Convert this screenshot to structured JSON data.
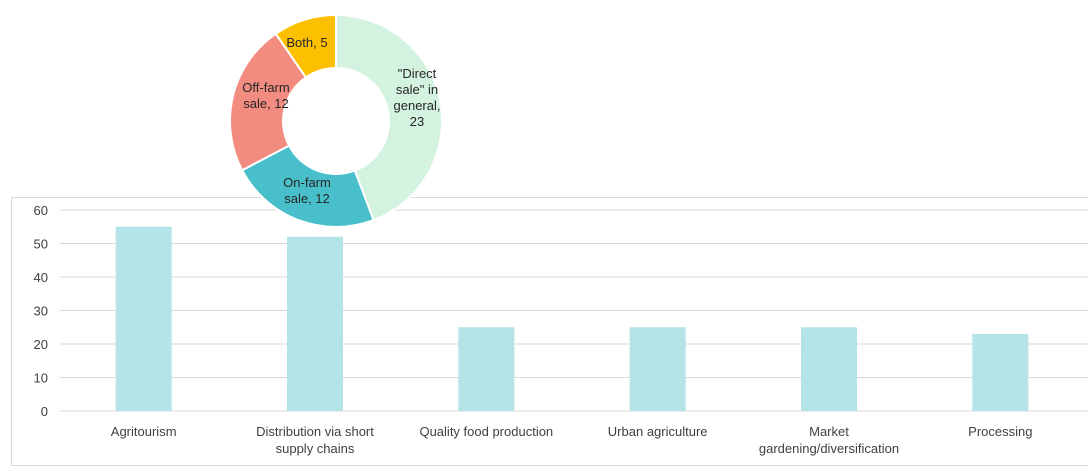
{
  "chart_data": [
    {
      "type": "bar",
      "categories": [
        [
          "Agritourism"
        ],
        [
          "Distribution via short",
          "supply chains"
        ],
        [
          "Quality food production"
        ],
        [
          "Urban agriculture"
        ],
        [
          "Market",
          "gardening/diversification"
        ],
        [
          "Processing"
        ]
      ],
      "values": [
        55,
        52,
        25,
        25,
        25,
        23
      ],
      "ylim": [
        0,
        60
      ],
      "yticks": [
        "0",
        "10",
        "20",
        "30",
        "40",
        "50",
        "60"
      ],
      "grid": true,
      "bar_color": "#b4e3e8"
    },
    {
      "type": "pie",
      "donut": true,
      "slices": [
        {
          "label": [
            "\"Direct",
            "sale\" in",
            "general,",
            "23"
          ],
          "value": 23,
          "color": "#d3f2df"
        },
        {
          "label": [
            "On-farm",
            "sale, 12"
          ],
          "value": 12,
          "color": "#48bfca"
        },
        {
          "label": [
            "Off-farm",
            "sale, 12"
          ],
          "value": 12,
          "color": "#f28c80"
        },
        {
          "label": [
            "Both, 5"
          ],
          "value": 5,
          "color": "#fcc000"
        }
      ]
    }
  ]
}
